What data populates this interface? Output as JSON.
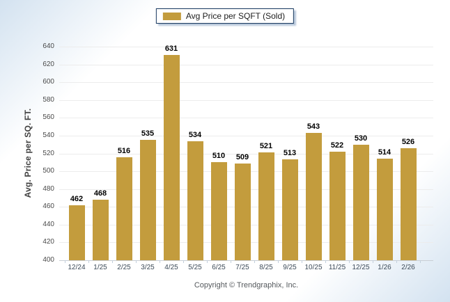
{
  "legend": {
    "label": "Avg Price per SQFT (Sold)",
    "swatch_color": "#C39C3D"
  },
  "chart_data": {
    "type": "bar",
    "title": "",
    "categories": [
      "12/24",
      "1/25",
      "2/25",
      "3/25",
      "4/25",
      "5/25",
      "6/25",
      "7/25",
      "8/25",
      "9/25",
      "10/25",
      "11/25",
      "12/25",
      "1/26",
      "2/26"
    ],
    "series": [
      {
        "name": "Avg Price per SQFT (Sold)",
        "values": [
          462,
          468,
          516,
          535,
          631,
          534,
          510,
          509,
          521,
          513,
          543,
          522,
          530,
          514,
          526
        ]
      }
    ],
    "xlabel": "",
    "ylabel": "Avg. Price per SQ. FT.",
    "ylim": [
      400,
      640
    ],
    "ytick_step": 20,
    "grid": true,
    "legend_position": "top-center",
    "bar_color": "#C39C3D"
  },
  "footer": {
    "copyright": "Copyright © Trendgraphix, Inc."
  }
}
